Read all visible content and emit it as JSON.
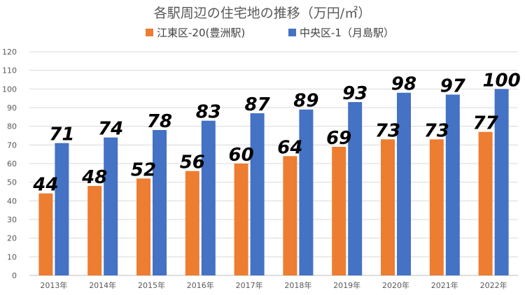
{
  "chart_data": {
    "type": "bar",
    "title": "各駅周辺の住宅地の推移（万円/㎡）",
    "categories": [
      "2013年",
      "2014年",
      "2015年",
      "2016年",
      "2017年",
      "2018年",
      "2019年",
      "2020年",
      "2021年",
      "2022年"
    ],
    "series": [
      {
        "name": "江東区-20(豊洲駅)",
        "color": "#ed7d31",
        "values": [
          44,
          48,
          52,
          56,
          60,
          64,
          69,
          73,
          73,
          77
        ]
      },
      {
        "name": "中央区-1（月島駅）",
        "color": "#4472c4",
        "values": [
          71,
          74,
          78,
          83,
          87,
          89,
          93,
          98,
          97,
          100
        ]
      }
    ],
    "ylim": [
      0,
      120
    ],
    "yticks": [
      0,
      10,
      20,
      30,
      40,
      50,
      60,
      70,
      80,
      90,
      100,
      110,
      120
    ],
    "grid": true,
    "legend": "top-center",
    "xlabel": "",
    "ylabel": ""
  }
}
